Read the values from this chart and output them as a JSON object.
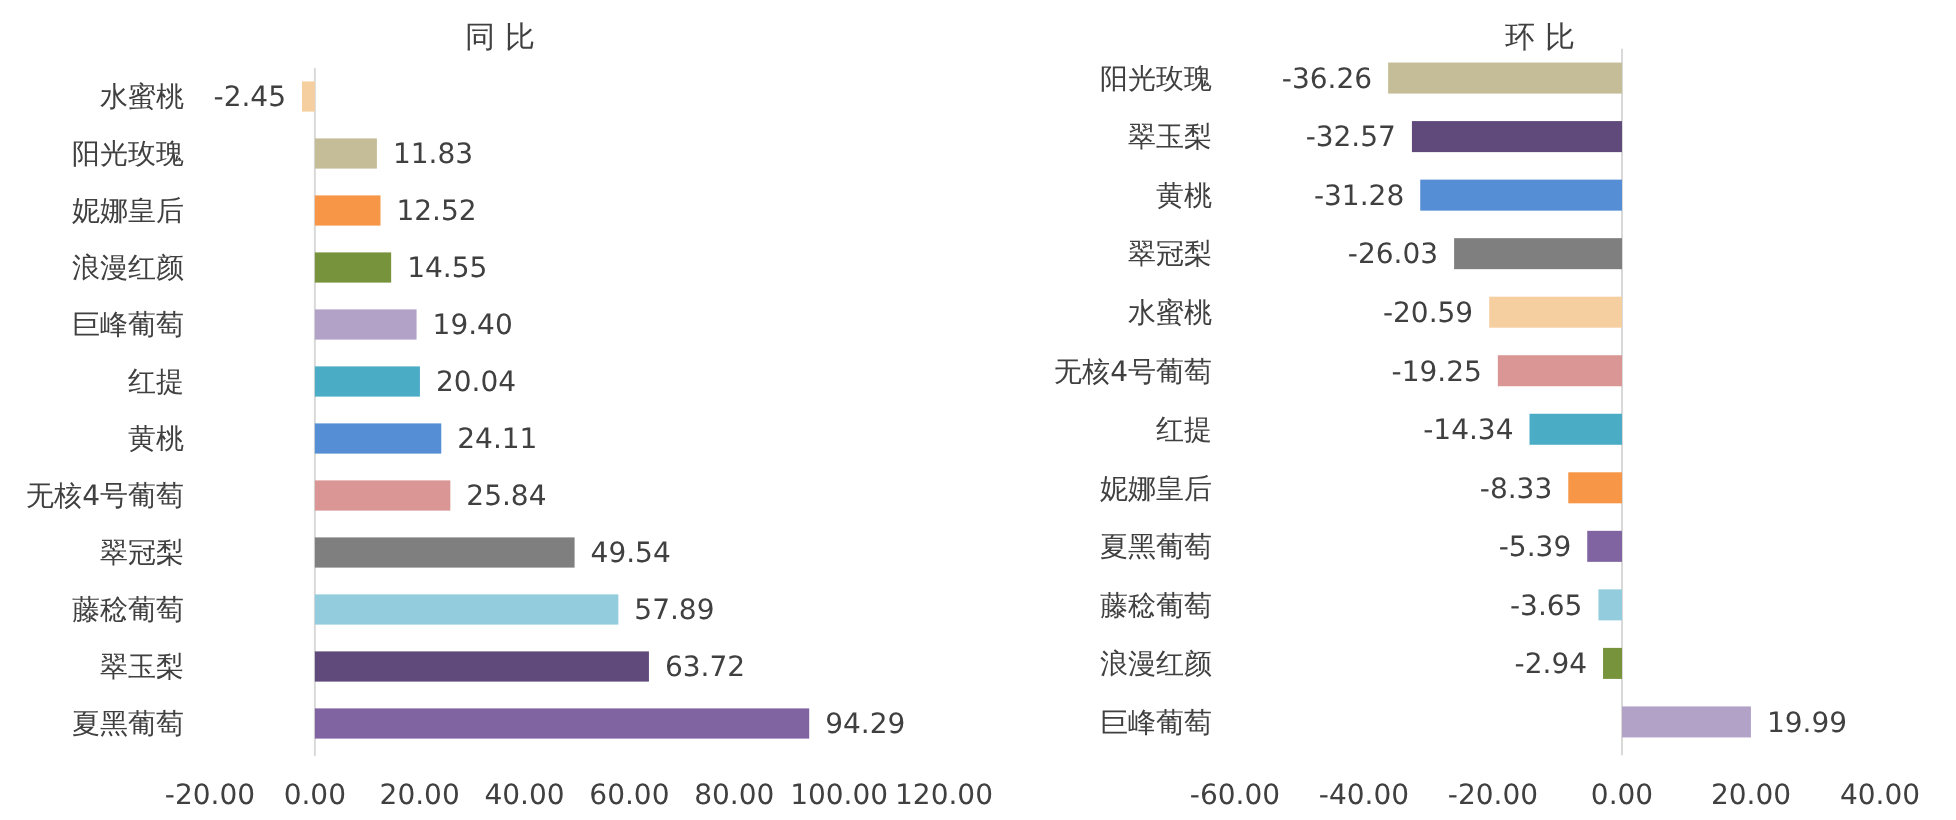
{
  "chart_data": [
    {
      "type": "bar",
      "orientation": "horizontal",
      "title": "同 比",
      "categories": [
        "水蜜桃",
        "阳光玫瑰",
        "妮娜皇后",
        "浪漫红颜",
        "巨峰葡萄",
        "红提",
        "黄桃",
        "无核4号葡萄",
        "翠冠梨",
        "藤稔葡萄",
        "翠玉梨",
        "夏黑葡萄"
      ],
      "values": [
        -2.45,
        11.83,
        12.52,
        14.55,
        19.4,
        20.04,
        24.11,
        25.84,
        49.54,
        57.89,
        63.72,
        94.29
      ],
      "value_labels": [
        "-2.45",
        "11.83",
        "12.52",
        "14.55",
        "19.40",
        "20.04",
        "24.11",
        "25.84",
        "49.54",
        "57.89",
        "63.72",
        "94.29"
      ],
      "colors": [
        "#f5cfa0",
        "#c4bd97",
        "#f79646",
        "#77933c",
        "#b3a2c7",
        "#4bacc6",
        "#558ed5",
        "#d99694",
        "#7f7f7f",
        "#93cddd",
        "#604a7b",
        "#8064a2"
      ],
      "xlim": [
        -20,
        120
      ],
      "xticks": [
        {
          "value": -20,
          "label": "-20.00"
        },
        {
          "value": 0,
          "label": "0.00"
        },
        {
          "value": 20,
          "label": "20.00"
        },
        {
          "value": 40,
          "label": "40.00"
        },
        {
          "value": 60,
          "label": "60.00"
        },
        {
          "value": 80,
          "label": "80.00"
        },
        {
          "value": 100,
          "label": "100.00"
        },
        {
          "value": 120,
          "label": "120.00"
        }
      ]
    },
    {
      "type": "bar",
      "orientation": "horizontal",
      "title": "环 比",
      "categories": [
        "阳光玫瑰",
        "翠玉梨",
        "黄桃",
        "翠冠梨",
        "水蜜桃",
        "无核4号葡萄",
        "红提",
        "妮娜皇后",
        "夏黑葡萄",
        "藤稔葡萄",
        "浪漫红颜",
        "巨峰葡萄"
      ],
      "values": [
        -36.26,
        -32.57,
        -31.28,
        -26.03,
        -20.59,
        -19.25,
        -14.34,
        -8.33,
        -5.39,
        -3.65,
        -2.94,
        19.99
      ],
      "value_labels": [
        "-36.26",
        "-32.57",
        "-31.28",
        "-26.03",
        "-20.59",
        "-19.25",
        "-14.34",
        "-8.33",
        "-5.39",
        "-3.65",
        "-2.94",
        "19.99"
      ],
      "colors": [
        "#c4bd97",
        "#604a7b",
        "#558ed5",
        "#7f7f7f",
        "#f5cfa0",
        "#d99694",
        "#4bacc6",
        "#f79646",
        "#8064a2",
        "#93cddd",
        "#77933c",
        "#b3a2c7"
      ],
      "xlim": [
        -60,
        40
      ],
      "xticks": [
        {
          "value": -60,
          "label": "-60.00"
        },
        {
          "value": -40,
          "label": "-40.00"
        },
        {
          "value": -20,
          "label": "-20.00"
        },
        {
          "value": 0,
          "label": "0.00"
        },
        {
          "value": 20,
          "label": "20.00"
        },
        {
          "value": 40,
          "label": "40.00"
        }
      ]
    }
  ]
}
